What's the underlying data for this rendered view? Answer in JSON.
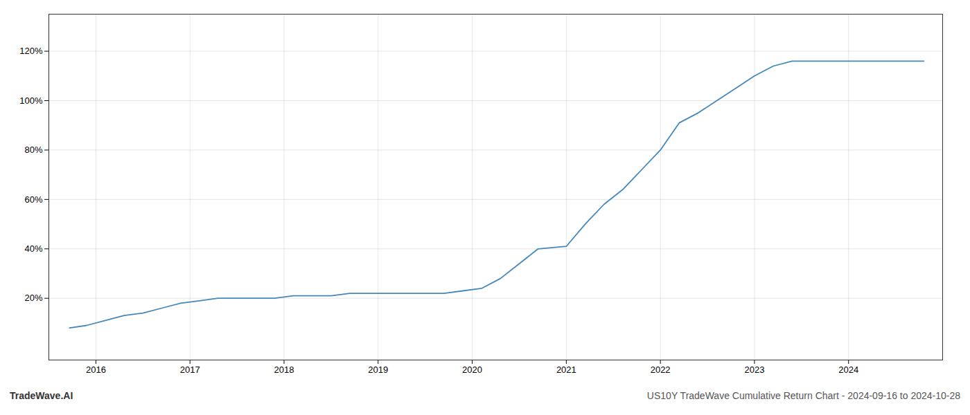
{
  "chart_data": {
    "type": "line",
    "title": "US10Y TradeWave Cumulative Return Chart - 2024-09-16 to 2024-10-28",
    "annotations": [
      "TradeWave.AI"
    ],
    "x": [
      2015.72,
      2015.9,
      2016.1,
      2016.3,
      2016.5,
      2016.7,
      2016.9,
      2017.1,
      2017.3,
      2017.5,
      2017.7,
      2017.9,
      2018.1,
      2018.3,
      2018.5,
      2018.7,
      2018.9,
      2019.1,
      2019.3,
      2019.5,
      2019.7,
      2019.9,
      2020.1,
      2020.3,
      2020.5,
      2020.7,
      2021.0,
      2021.2,
      2021.4,
      2021.6,
      2021.8,
      2022.0,
      2022.2,
      2022.4,
      2022.6,
      2022.8,
      2023.0,
      2023.2,
      2023.4,
      2023.5,
      2023.7,
      2024.0,
      2024.8
    ],
    "values": [
      8,
      9,
      11,
      13,
      14,
      16,
      18,
      19,
      20,
      20,
      20,
      20,
      21,
      21,
      21,
      22,
      22,
      22,
      22,
      22,
      22,
      23,
      24,
      28,
      34,
      40,
      41,
      50,
      58,
      64,
      72,
      80,
      91,
      95,
      100,
      105,
      110,
      114,
      116,
      116,
      116,
      116,
      116
    ],
    "color": "#4488bb",
    "xlim": [
      2015.5,
      2025.0
    ],
    "ylim": [
      -5,
      135
    ],
    "xticks": [
      2016,
      2017,
      2018,
      2019,
      2020,
      2021,
      2022,
      2023,
      2024
    ],
    "yticks": [
      {
        "value": 20,
        "label": "20%"
      },
      {
        "value": 40,
        "label": "40%"
      },
      {
        "value": 60,
        "label": "60%"
      },
      {
        "value": 80,
        "label": "80%"
      },
      {
        "value": 100,
        "label": "100%"
      },
      {
        "value": 120,
        "label": "120%"
      }
    ],
    "grid": true
  }
}
